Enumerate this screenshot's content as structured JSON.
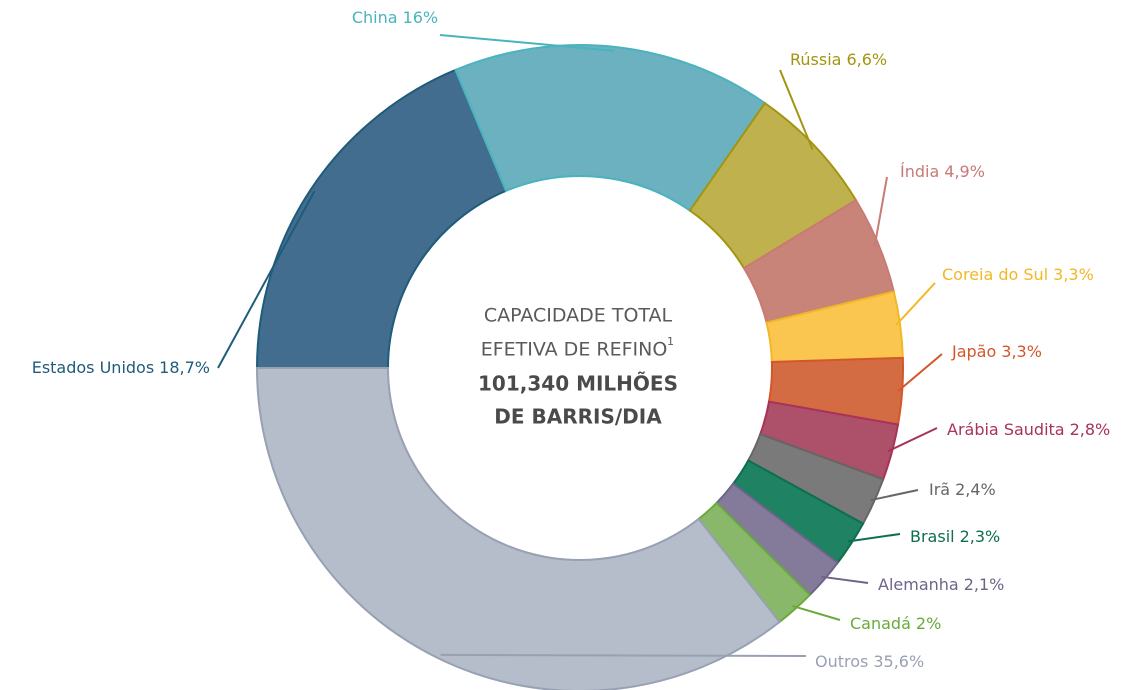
{
  "chart_data": {
    "type": "donut",
    "categories": [
      "Estados Unidos",
      "China",
      "Rússia",
      "Índia",
      "Coreia do Sul",
      "Japão",
      "Arábia Saudita",
      "Irã",
      "Brasil",
      "Alemanha",
      "Canadá",
      "Outros"
    ],
    "values": [
      18.7,
      16,
      6.6,
      4.9,
      3.3,
      3.3,
      2.8,
      2.4,
      2.3,
      2.1,
      2,
      35.6
    ],
    "value_labels": [
      "18,7%",
      "16%",
      "6,6%",
      "4,9%",
      "3,3%",
      "3,3%",
      "2,8%",
      "2,4%",
      "2,3%",
      "2,1%",
      "2%",
      "35,6%"
    ],
    "colors": [
      "#426d8e",
      "#6bb1bf",
      "#bfb24e",
      "#c98479",
      "#fbc64f",
      "#d46c43",
      "#ad5069",
      "#7a7a7a",
      "#1f8263",
      "#847a9a",
      "#8ab86a",
      "#b5bcca"
    ],
    "label_colors": [
      "#1f5c7a",
      "#4ab3bf",
      "#a39510",
      "#c97a75",
      "#f2b824",
      "#d4572b",
      "#a8325a",
      "#666666",
      "#0f6e50",
      "#6e6488",
      "#6aaa3a",
      "#98a1b3"
    ],
    "center_label": {
      "lines": [
        "CAPACIDADE TOTAL",
        "EFETIVA DE REFINO"
      ],
      "footnote_mark": "1",
      "value_lines": [
        "101,340 MILHÕES",
        "DE BARRIS/DIA"
      ]
    }
  }
}
